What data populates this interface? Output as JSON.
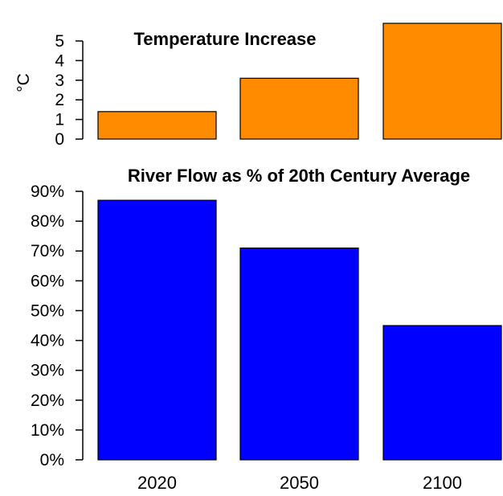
{
  "chart_data": [
    {
      "type": "bar",
      "title": "Temperature Increase",
      "ylabel": "°C",
      "categories": [
        "2020",
        "2050",
        "2100"
      ],
      "values": [
        1.4,
        3.1,
        5.9
      ],
      "ylim": [
        0,
        5.9
      ],
      "yticks": [
        0,
        1,
        2,
        3,
        4,
        5
      ],
      "ytick_labels": [
        "0",
        "1",
        "2",
        "3",
        "4",
        "5"
      ],
      "bar_color": "#FF8C00",
      "grid": false
    },
    {
      "type": "bar",
      "title": "River Flow as % of 20th Century Average",
      "ylabel": "",
      "categories": [
        "2020",
        "2050",
        "2100"
      ],
      "values": [
        87,
        71,
        45
      ],
      "ylim": [
        0,
        90
      ],
      "yticks": [
        0,
        10,
        20,
        30,
        40,
        50,
        60,
        70,
        80,
        90
      ],
      "ytick_labels": [
        "0%",
        "10%",
        "20%",
        "30%",
        "40%",
        "50%",
        "60%",
        "70%",
        "80%",
        "90%"
      ],
      "bar_color": "#0000FF",
      "grid": false
    }
  ],
  "x_tick_labels": [
    "2020",
    "2050",
    "2100"
  ]
}
